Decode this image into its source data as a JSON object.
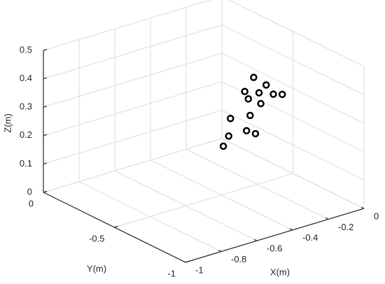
{
  "chart_data": {
    "type": "scatter3d",
    "xlabel": "X(m)",
    "ylabel": "Y(m)",
    "zlabel": "Z(m)",
    "x": [
      -0.22,
      -0.27,
      -0.15,
      -0.19,
      -0.11,
      -0.06,
      -0.25,
      -0.18,
      -0.24,
      -0.35,
      -0.26,
      -0.21,
      -0.36,
      -0.39
    ],
    "y": [
      -0.5,
      -0.5,
      -0.5,
      -0.5,
      -0.5,
      -0.5,
      -0.5,
      -0.5,
      -0.5,
      -0.5,
      -0.5,
      -0.5,
      -0.5,
      -0.5
    ],
    "z": [
      0.38,
      0.34,
      0.34,
      0.32,
      0.3,
      0.29,
      0.31,
      0.28,
      0.25,
      0.26,
      0.2,
      0.18,
      0.2,
      0.17
    ],
    "color": "#000000",
    "xlim": [
      -1,
      0
    ],
    "ylim": [
      -1,
      0
    ],
    "zlim": [
      0,
      0.5
    ],
    "xticks": [
      -1,
      -0.8,
      -0.6,
      -0.4,
      -0.2,
      0
    ],
    "yticks": [
      -1,
      -0.5,
      0
    ],
    "zticks": [
      0,
      0.1,
      0.2,
      0.3,
      0.4,
      0.5
    ],
    "grid": true
  }
}
